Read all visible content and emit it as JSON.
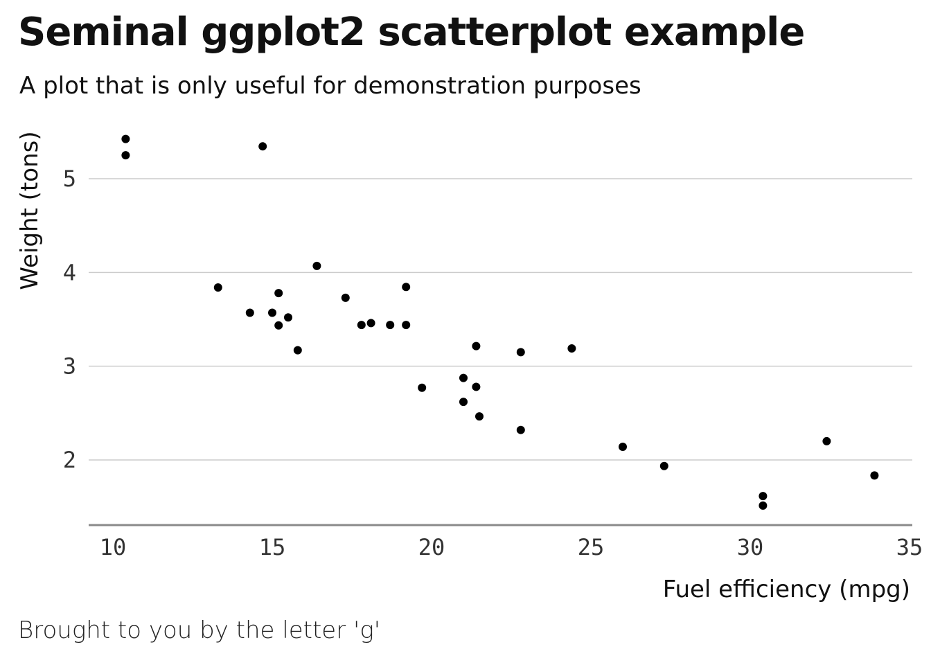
{
  "chart_data": {
    "type": "scatter",
    "title": "Seminal ggplot2 scatterplot example",
    "subtitle": "A plot that is only useful for demonstration purposes",
    "caption": "Brought to you by the letter 'g'",
    "xlabel": "Fuel efficiency (mpg)",
    "ylabel": "Weight (tons)",
    "xlim": [
      9.5,
      35
    ],
    "ylim": [
      1.32,
      5.6
    ],
    "xticks": [
      10,
      15,
      20,
      25,
      30,
      35
    ],
    "yticks": [
      2,
      3,
      4,
      5
    ],
    "grid": "horizontal major",
    "point_color": "#000000",
    "points": [
      {
        "x": 21.0,
        "y": 2.62
      },
      {
        "x": 21.0,
        "y": 2.875
      },
      {
        "x": 22.8,
        "y": 2.32
      },
      {
        "x": 21.4,
        "y": 3.215
      },
      {
        "x": 18.7,
        "y": 3.44
      },
      {
        "x": 18.1,
        "y": 3.46
      },
      {
        "x": 14.3,
        "y": 3.57
      },
      {
        "x": 24.4,
        "y": 3.19
      },
      {
        "x": 22.8,
        "y": 3.15
      },
      {
        "x": 19.2,
        "y": 3.44
      },
      {
        "x": 17.8,
        "y": 3.44
      },
      {
        "x": 16.4,
        "y": 4.07
      },
      {
        "x": 17.3,
        "y": 3.73
      },
      {
        "x": 15.2,
        "y": 3.78
      },
      {
        "x": 10.4,
        "y": 5.25
      },
      {
        "x": 10.4,
        "y": 5.424
      },
      {
        "x": 14.7,
        "y": 5.345
      },
      {
        "x": 32.4,
        "y": 2.2
      },
      {
        "x": 30.4,
        "y": 1.615
      },
      {
        "x": 33.9,
        "y": 1.835
      },
      {
        "x": 21.5,
        "y": 2.465
      },
      {
        "x": 15.5,
        "y": 3.52
      },
      {
        "x": 15.2,
        "y": 3.435
      },
      {
        "x": 13.3,
        "y": 3.84
      },
      {
        "x": 19.2,
        "y": 3.845
      },
      {
        "x": 27.3,
        "y": 1.935
      },
      {
        "x": 26.0,
        "y": 2.14
      },
      {
        "x": 30.4,
        "y": 1.513
      },
      {
        "x": 15.8,
        "y": 3.17
      },
      {
        "x": 19.7,
        "y": 2.77
      },
      {
        "x": 15.0,
        "y": 3.57
      },
      {
        "x": 21.4,
        "y": 2.78
      }
    ]
  }
}
